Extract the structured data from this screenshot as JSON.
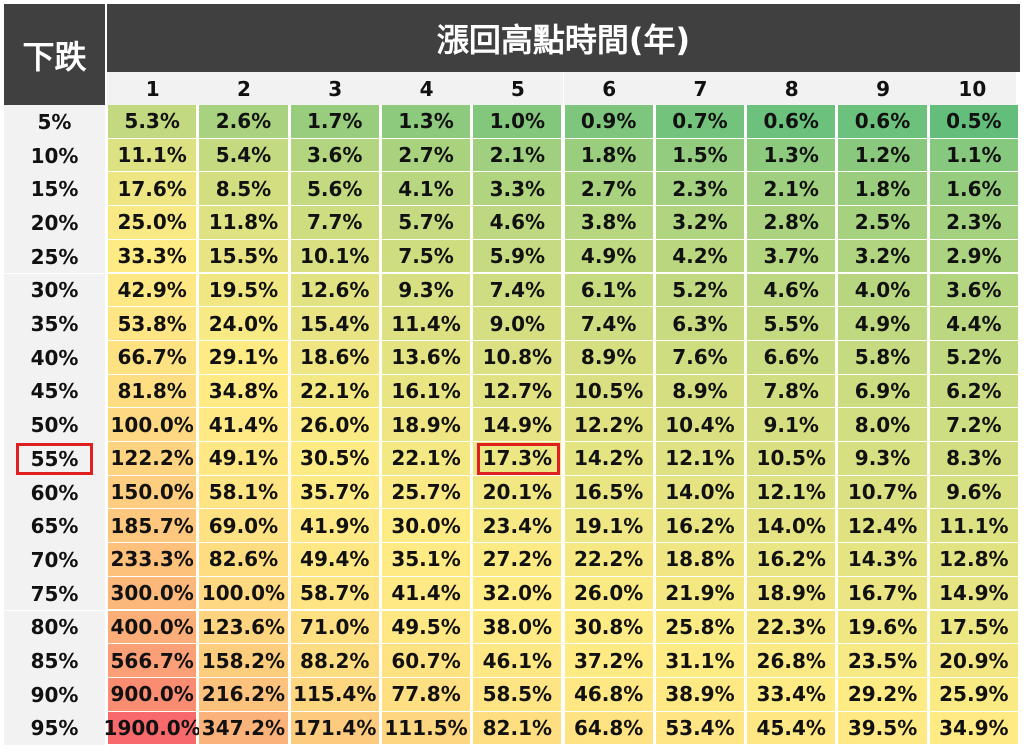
{
  "chart_data": {
    "type": "heatmap",
    "title": "漲回高點時間(年)",
    "row_header_label": "下跌",
    "columns": [
      "1",
      "2",
      "3",
      "4",
      "5",
      "6",
      "7",
      "8",
      "9",
      "10"
    ],
    "rows": [
      "5%",
      "10%",
      "15%",
      "20%",
      "25%",
      "30%",
      "35%",
      "40%",
      "45%",
      "50%",
      "55%",
      "60%",
      "65%",
      "70%",
      "75%",
      "80%",
      "85%",
      "90%",
      "95%"
    ],
    "values": [
      [
        5.3,
        2.6,
        1.7,
        1.3,
        1.0,
        0.9,
        0.7,
        0.6,
        0.6,
        0.5
      ],
      [
        11.1,
        5.4,
        3.6,
        2.7,
        2.1,
        1.8,
        1.5,
        1.3,
        1.2,
        1.1
      ],
      [
        17.6,
        8.5,
        5.6,
        4.1,
        3.3,
        2.7,
        2.3,
        2.1,
        1.8,
        1.6
      ],
      [
        25.0,
        11.8,
        7.7,
        5.7,
        4.6,
        3.8,
        3.2,
        2.8,
        2.5,
        2.3
      ],
      [
        33.3,
        15.5,
        10.1,
        7.5,
        5.9,
        4.9,
        4.2,
        3.7,
        3.2,
        2.9
      ],
      [
        42.9,
        19.5,
        12.6,
        9.3,
        7.4,
        6.1,
        5.2,
        4.6,
        4.0,
        3.6
      ],
      [
        53.8,
        24.0,
        15.4,
        11.4,
        9.0,
        7.4,
        6.3,
        5.5,
        4.9,
        4.4
      ],
      [
        66.7,
        29.1,
        18.6,
        13.6,
        10.8,
        8.9,
        7.6,
        6.6,
        5.8,
        5.2
      ],
      [
        81.8,
        34.8,
        22.1,
        16.1,
        12.7,
        10.5,
        8.9,
        7.8,
        6.9,
        6.2
      ],
      [
        100.0,
        41.4,
        26.0,
        18.9,
        14.9,
        12.2,
        10.4,
        9.1,
        8.0,
        7.2
      ],
      [
        122.2,
        49.1,
        30.5,
        22.1,
        17.3,
        14.2,
        12.1,
        10.5,
        9.3,
        8.3
      ],
      [
        150.0,
        58.1,
        35.7,
        25.7,
        20.1,
        16.5,
        14.0,
        12.1,
        10.7,
        9.6
      ],
      [
        185.7,
        69.0,
        41.9,
        30.0,
        23.4,
        19.1,
        16.2,
        14.0,
        12.4,
        11.1
      ],
      [
        233.3,
        82.6,
        49.4,
        35.1,
        27.2,
        22.2,
        18.8,
        16.2,
        14.3,
        12.8
      ],
      [
        300.0,
        100.0,
        58.7,
        41.4,
        32.0,
        26.0,
        21.9,
        18.9,
        16.7,
        14.9
      ],
      [
        400.0,
        123.6,
        71.0,
        49.5,
        38.0,
        30.8,
        25.8,
        22.3,
        19.6,
        17.5
      ],
      [
        566.7,
        158.2,
        88.2,
        60.7,
        46.1,
        37.2,
        31.1,
        26.8,
        23.5,
        20.9
      ],
      [
        900.0,
        216.2,
        115.4,
        77.8,
        58.5,
        46.8,
        38.9,
        33.4,
        29.2,
        25.9
      ],
      [
        1900.0,
        347.2,
        171.4,
        111.5,
        82.1,
        64.8,
        53.4,
        45.4,
        39.5,
        34.9
      ]
    ],
    "value_suffix": "%",
    "highlight": {
      "row": "55%",
      "column": "5",
      "color": "#e02020"
    },
    "color_scale": {
      "low": "#63be7b",
      "mid": "#ffeb84",
      "high": "#f8696b"
    }
  }
}
